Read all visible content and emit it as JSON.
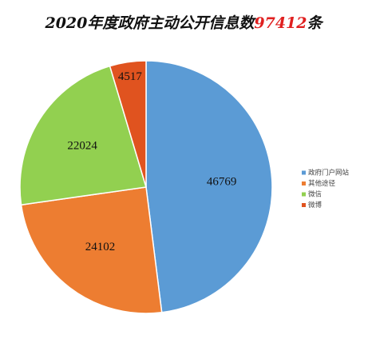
{
  "chart_data": {
    "type": "pie",
    "title_parts": [
      "2020年度政府主动公开信息数",
      "97412",
      "条"
    ],
    "title_colors": [
      "#111111",
      "#e02020",
      "#111111"
    ],
    "categories": [
      "政府门户网站",
      "其他途径",
      "微信",
      "微博"
    ],
    "values": [
      46769,
      24102,
      22024,
      4517
    ],
    "colors": [
      "#5b9bd5",
      "#ed7d31",
      "#92d050",
      "#e0531f"
    ],
    "legend": "right"
  }
}
